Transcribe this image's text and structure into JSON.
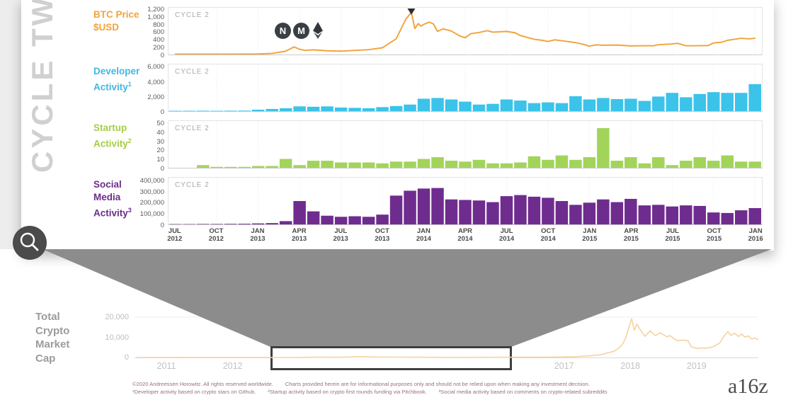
{
  "card": {
    "side_label": "CYCLE TWO",
    "panel_label": "CYCLE 2",
    "peak_marker": "down-triangle",
    "rows": [
      {
        "chart": "btc_price",
        "label_lines": [
          "BTC Price",
          "$USD"
        ],
        "sup": "",
        "label_color": "#F0A43C"
      },
      {
        "chart": "developer_activity",
        "label_lines": [
          "Developer",
          "Activity"
        ],
        "sup": "1",
        "label_color": "#3EB9E4"
      },
      {
        "chart": "startup_activity",
        "label_lines": [
          "Startup",
          "Activity"
        ],
        "sup": "2",
        "label_color": "#A5CE45"
      },
      {
        "chart": "social_media_activity",
        "label_lines": [
          "Social",
          "Media",
          "Activity"
        ],
        "sup": "3",
        "label_color": "#6B2D87"
      }
    ],
    "btc_icons": [
      {
        "name": "namecoin",
        "glyph": "N"
      },
      {
        "name": "monero",
        "glyph": "M"
      },
      {
        "name": "ethereum",
        "glyph": "diamond"
      }
    ]
  },
  "x_axis_top": {
    "tick_labels": [
      "JUL 2012",
      "OCT 2012",
      "JAN 2013",
      "APR 2013",
      "JUL 2013",
      "OCT 2013",
      "JAN 2014",
      "APR 2014",
      "JUL 2014",
      "OCT 2014",
      "JAN 2015",
      "APR 2015",
      "JUL 2015",
      "OCT 2015",
      "JAN 2016"
    ]
  },
  "bottom": {
    "label_lines": [
      "Total",
      "Crypto",
      "Market",
      "Cap"
    ],
    "label_color": "#9B9B9B"
  },
  "footer": {
    "line1": "©2020 Andreessen Horowitz. All rights reserved worldwide.        Charts provided herein are for informational purposes only and should not be relied upon when making any investment decision.",
    "line2": "¹Developer activity based on crypto stars on Github.        ²Startup activity based on crypto first rounds funding via Pitchbook.        ³Social media activity based on comments on crypto-related subreddits",
    "logo": "a16z"
  },
  "chart_data": [
    {
      "name": "btc_price",
      "type": "line",
      "title": "BTC Price $USD",
      "color": "#F2A33C",
      "ylim": [
        0,
        1255
      ],
      "yticks": [
        1200,
        1000,
        800,
        600,
        400,
        200,
        0
      ],
      "ytick_labels": [
        "1,200",
        "1,000",
        "800",
        "600",
        "400",
        "200",
        "0"
      ],
      "x_range": "monthly index 0=JUL 2012 to 42=JAN 2016",
      "peak_marker_at": 17.1,
      "points": [
        [
          0,
          9
        ],
        [
          1,
          10
        ],
        [
          2,
          11
        ],
        [
          3,
          11
        ],
        [
          4,
          11
        ],
        [
          5,
          13
        ],
        [
          6,
          15
        ],
        [
          7,
          30
        ],
        [
          8,
          90
        ],
        [
          8.6,
          205
        ],
        [
          9,
          140
        ],
        [
          9.4,
          110
        ],
        [
          10,
          125
        ],
        [
          11,
          100
        ],
        [
          12,
          90
        ],
        [
          13,
          110
        ],
        [
          14,
          130
        ],
        [
          15,
          180
        ],
        [
          16,
          420
        ],
        [
          16.7,
          950
        ],
        [
          17.1,
          1130
        ],
        [
          17.35,
          700
        ],
        [
          17.6,
          830
        ],
        [
          17.8,
          760
        ],
        [
          18,
          810
        ],
        [
          18.4,
          870
        ],
        [
          18.7,
          820
        ],
        [
          19,
          620
        ],
        [
          19.4,
          690
        ],
        [
          20,
          630
        ],
        [
          20.6,
          500
        ],
        [
          21,
          450
        ],
        [
          21.4,
          560
        ],
        [
          22,
          590
        ],
        [
          22.6,
          640
        ],
        [
          23,
          600
        ],
        [
          24,
          620
        ],
        [
          24.6,
          585
        ],
        [
          25,
          510
        ],
        [
          26,
          410
        ],
        [
          26.6,
          380
        ],
        [
          27,
          350
        ],
        [
          27.5,
          395
        ],
        [
          28,
          370
        ],
        [
          28.6,
          340
        ],
        [
          29,
          320
        ],
        [
          29.6,
          270
        ],
        [
          30,
          225
        ],
        [
          30.5,
          260
        ],
        [
          31,
          250
        ],
        [
          32,
          255
        ],
        [
          32.6,
          240
        ],
        [
          33,
          230
        ],
        [
          34,
          237
        ],
        [
          34.6,
          232
        ],
        [
          35,
          262
        ],
        [
          36,
          285
        ],
        [
          36.4,
          300
        ],
        [
          37,
          235
        ],
        [
          38,
          237
        ],
        [
          38.6,
          240
        ],
        [
          39,
          310
        ],
        [
          39.6,
          330
        ],
        [
          40,
          380
        ],
        [
          40.6,
          415
        ],
        [
          41,
          435
        ],
        [
          41.6,
          420
        ],
        [
          42,
          435
        ]
      ]
    },
    {
      "name": "developer_activity",
      "type": "bar",
      "title": "Developer Activity (crypto stars on Github)",
      "color": "#3BC3EA",
      "ylim": [
        0,
        6400
      ],
      "yticks": [
        6000,
        4000,
        2000,
        0
      ],
      "ytick_labels": [
        "6,000",
        "4,000",
        "2,000",
        "0"
      ],
      "x_range": "monthly JUL 2012 - JAN 2016",
      "values": [
        50,
        50,
        60,
        50,
        60,
        70,
        200,
        300,
        400,
        650,
        600,
        650,
        500,
        450,
        400,
        550,
        700,
        900,
        1700,
        1800,
        1600,
        1300,
        900,
        1000,
        1600,
        1450,
        1100,
        1200,
        1100,
        2050,
        1600,
        1800,
        1650,
        1700,
        1400,
        2000,
        2500,
        1900,
        2350,
        2600,
        2500,
        2500,
        3700
      ]
    },
    {
      "name": "startup_activity",
      "type": "bar",
      "title": "Startup Activity (crypto first rounds funding via Pitchbook)",
      "color": "#A2D45A",
      "ylim": [
        0,
        53
      ],
      "yticks": [
        50,
        40,
        30,
        20,
        10,
        0
      ],
      "ytick_labels": [
        "50",
        "40",
        "30",
        "20",
        "10",
        "0"
      ],
      "x_range": "monthly JUL 2012 - JAN 2016",
      "values": [
        0,
        0,
        3,
        1,
        1,
        1,
        2,
        2,
        10,
        3,
        8,
        8,
        6,
        6,
        6,
        5,
        7,
        7,
        10,
        12,
        8,
        7,
        9,
        5,
        5,
        6,
        13,
        9,
        14,
        9,
        12,
        45,
        8,
        12,
        5,
        12,
        3,
        8,
        12,
        8,
        14,
        7,
        7
      ]
    },
    {
      "name": "social_media_activity",
      "type": "bar",
      "title": "Social Media Activity (comments on crypto-related subreddits)",
      "color": "#6F2C8F",
      "ylim": [
        0,
        430000
      ],
      "yticks": [
        400000,
        300000,
        200000,
        100000,
        0
      ],
      "ytick_labels": [
        "400,000",
        "300,000",
        "200,000",
        "100,000",
        "0"
      ],
      "x_range": "monthly JUL 2012 - JAN 2016",
      "values": [
        3000,
        3000,
        4000,
        4000,
        5000,
        6000,
        9000,
        12000,
        30000,
        215000,
        120000,
        80000,
        70000,
        75000,
        70000,
        90000,
        265000,
        310000,
        330000,
        335000,
        230000,
        225000,
        220000,
        205000,
        260000,
        270000,
        255000,
        245000,
        215000,
        180000,
        200000,
        230000,
        205000,
        235000,
        175000,
        180000,
        165000,
        175000,
        170000,
        110000,
        105000,
        130000,
        150000
      ]
    },
    {
      "name": "market_cap",
      "type": "line",
      "title": "Total Crypto Market Cap",
      "color": "#F5D3A0",
      "ylim": [
        0,
        22000
      ],
      "yticks": [
        20000,
        10000,
        0
      ],
      "ytick_labels": [
        "20,000",
        "10,000",
        "0"
      ],
      "visible_year_ticks": [
        2011,
        2012,
        2017,
        2018,
        2019
      ],
      "zoom_window_years": [
        2012.5,
        2016.1
      ],
      "points": [
        [
          2010.55,
          5
        ],
        [
          2011,
          10
        ],
        [
          2011.2,
          35
        ],
        [
          2011.45,
          15
        ],
        [
          2011.8,
          9
        ],
        [
          2012,
          10
        ],
        [
          2012.5,
          11
        ],
        [
          2013,
          18
        ],
        [
          2013.3,
          130
        ],
        [
          2013.55,
          95
        ],
        [
          2013.95,
          380
        ],
        [
          2014.15,
          250
        ],
        [
          2014.5,
          160
        ],
        [
          2014.9,
          90
        ],
        [
          2015.2,
          55
        ],
        [
          2015.6,
          65
        ],
        [
          2016,
          110
        ],
        [
          2016.4,
          150
        ],
        [
          2016.7,
          170
        ],
        [
          2017,
          240
        ],
        [
          2017.2,
          450
        ],
        [
          2017.4,
          850
        ],
        [
          2017.55,
          1300
        ],
        [
          2017.65,
          2200
        ],
        [
          2017.75,
          3000
        ],
        [
          2017.82,
          4500
        ],
        [
          2017.88,
          6500
        ],
        [
          2017.93,
          9500
        ],
        [
          2017.98,
          15000
        ],
        [
          2018.02,
          19200
        ],
        [
          2018.06,
          13500
        ],
        [
          2018.1,
          16500
        ],
        [
          2018.15,
          13800
        ],
        [
          2018.22,
          10500
        ],
        [
          2018.3,
          13200
        ],
        [
          2018.38,
          10800
        ],
        [
          2018.45,
          12300
        ],
        [
          2018.55,
          10300
        ],
        [
          2018.6,
          10800
        ],
        [
          2018.7,
          8400
        ],
        [
          2018.8,
          8600
        ],
        [
          2018.87,
          8300
        ],
        [
          2018.92,
          5300
        ],
        [
          2019.0,
          4500
        ],
        [
          2019.08,
          4700
        ],
        [
          2019.15,
          4600
        ],
        [
          2019.25,
          5300
        ],
        [
          2019.35,
          7200
        ],
        [
          2019.42,
          10800
        ],
        [
          2019.47,
          12800
        ],
        [
          2019.52,
          10900
        ],
        [
          2019.57,
          12100
        ],
        [
          2019.63,
          10400
        ],
        [
          2019.68,
          11600
        ],
        [
          2019.73,
          10100
        ],
        [
          2019.78,
          10700
        ],
        [
          2019.83,
          9100
        ],
        [
          2019.88,
          9700
        ],
        [
          2019.93,
          8700
        ]
      ]
    }
  ]
}
